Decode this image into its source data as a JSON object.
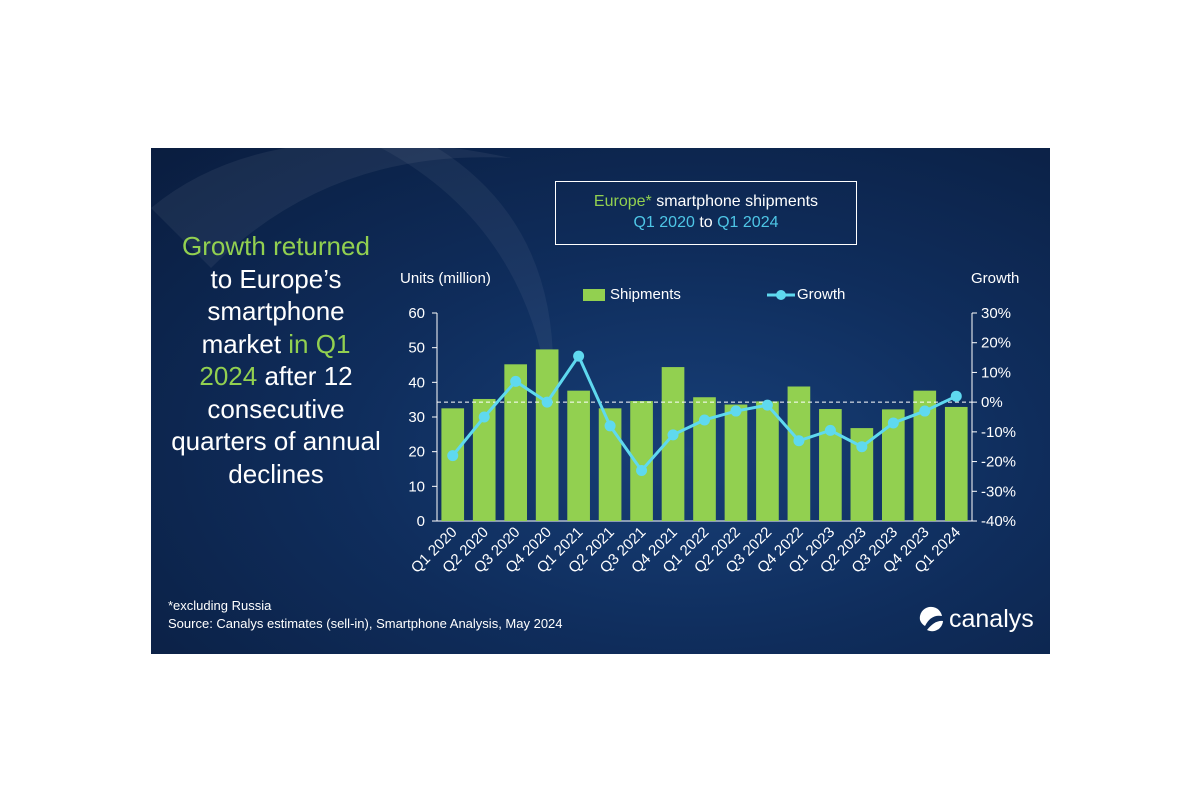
{
  "headline": {
    "part1": "Growth",
    "part2": "returned",
    "part3": " to Europe’s smartphone market ",
    "part4": "in Q1 2024",
    "part5": " after 12 consecutive quarters of annual declines"
  },
  "title_box": {
    "line1_a": "Europe*",
    "line1_b": " smartphone  shipments",
    "line2_a": "Q1 2020",
    "line2_b": " to ",
    "line2_c": "Q1 2024"
  },
  "colors": {
    "bar": "#92d050",
    "line": "#5fd9ef",
    "background": "#0f2d5c",
    "accent_green": "#92d050",
    "accent_cyan": "#4ec6e6"
  },
  "chart_data": {
    "type": "bar",
    "categories": [
      "Q1 2020",
      "Q2 2020",
      "Q3 2020",
      "Q4 2020",
      "Q1 2021",
      "Q2 2021",
      "Q3 2021",
      "Q4 2021",
      "Q1 2022",
      "Q2 2022",
      "Q3 2022",
      "Q4 2022",
      "Q1 2023",
      "Q2 2023",
      "Q3 2023",
      "Q4 2023",
      "Q1 2024"
    ],
    "series": [
      {
        "name": "Shipments",
        "type": "bar",
        "axis": "left",
        "values": [
          32.5,
          35.2,
          45.2,
          49.5,
          37.6,
          32.5,
          34.6,
          44.4,
          35.7,
          33.6,
          34.5,
          38.8,
          32.3,
          26.8,
          32.2,
          37.6,
          32.9
        ]
      },
      {
        "name": "Growth",
        "type": "line",
        "axis": "right",
        "unit": "%",
        "values": [
          -18,
          -5,
          7,
          0,
          15.5,
          -8,
          -23,
          -11,
          -6,
          -3,
          -1,
          -13,
          -9.5,
          -15,
          -7,
          -3,
          2
        ]
      }
    ],
    "left_axis": {
      "label": "Units (million)",
      "ylim": [
        0,
        60
      ],
      "ticks": [
        "0",
        "10",
        "20",
        "30",
        "40",
        "50",
        "60"
      ]
    },
    "right_axis": {
      "label": "Growth",
      "ylim": [
        -40,
        30
      ],
      "ticks": [
        "-40%",
        "-30%",
        "-20%",
        "-10%",
        "0%",
        "10%",
        "20%",
        "30%"
      ]
    },
    "zero_growth_reference": "dashed",
    "legend": "top"
  },
  "footnote": {
    "line1": "*excluding Russia",
    "line2": "Source:  Canalys estimates (sell-in), Smartphone Analysis, May 2024"
  },
  "logo": {
    "text": "canalys",
    "icon": "canalys-logo-icon"
  }
}
